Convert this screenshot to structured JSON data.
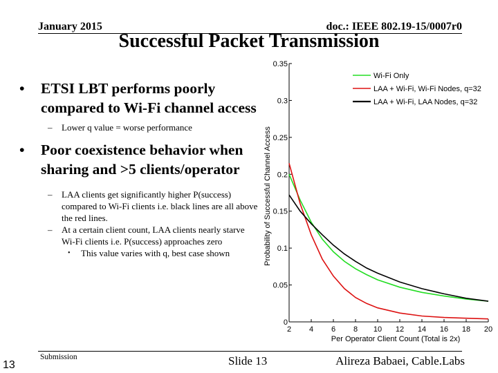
{
  "header": {
    "date": "January 2015",
    "doc": "doc.: IEEE 802.19-15/0007r0",
    "title": "Successful Packet Transmission"
  },
  "bullets": {
    "b1": "ETSI LBT performs poorly compared to Wi-Fi channel access",
    "b1_sub1": "Lower q value = worse performance",
    "b2": "Poor coexistence behavior when sharing and >5 clients/operator",
    "b2_sub1": "LAA clients get significantly higher P(success) compared to Wi-Fi clients i.e. black lines are all above the red lines.",
    "b2_sub2": "At a certain client count, LAA clients nearly starve Wi-Fi clients i.e. P(success) approaches zero",
    "b2_sub2_sub1": "This value varies with q, best case shown"
  },
  "footer": {
    "submission": "Submission",
    "page_number": "13",
    "slide": "Slide 13",
    "author": "Alireza Babaei, Cable.Labs"
  },
  "colors": {
    "wifi": "#22dd22",
    "laa_wifi": "#dd1111",
    "laa_laa": "#000000"
  },
  "chart_data": {
    "type": "line",
    "title": "",
    "xlabel": "Per Operator Client Count (Total is 2x)",
    "ylabel": "Probability of Successful Channel Access",
    "xlim": [
      2,
      20
    ],
    "ylim": [
      0,
      0.35
    ],
    "xticks": [
      2,
      4,
      6,
      8,
      10,
      12,
      14,
      16,
      18,
      20
    ],
    "yticks": [
      0,
      0.05,
      0.1,
      0.15,
      0.2,
      0.25,
      0.3,
      0.35
    ],
    "xtick_labels": [
      "2",
      "4",
      "6",
      "8",
      "10",
      "12",
      "14",
      "16",
      "18",
      "20"
    ],
    "ytick_labels": [
      "0",
      "0.05",
      "0.1",
      "0.15",
      "0.2",
      "0.25",
      "0.3",
      "0.35"
    ],
    "legend_position": "top-right",
    "x": [
      2,
      3,
      4,
      5,
      6,
      7,
      8,
      9,
      10,
      12,
      14,
      16,
      18,
      20
    ],
    "series": [
      {
        "name": "Wi-Fi Only",
        "color": "#22dd22",
        "values": [
          0.2,
          0.165,
          0.135,
          0.112,
          0.095,
          0.082,
          0.072,
          0.064,
          0.057,
          0.047,
          0.04,
          0.035,
          0.031,
          0.028
        ]
      },
      {
        "name": "LAA + Wi-Fi, Wi-Fi Nodes, q=32",
        "color": "#dd1111",
        "values": [
          0.215,
          0.16,
          0.118,
          0.085,
          0.062,
          0.045,
          0.033,
          0.025,
          0.019,
          0.012,
          0.008,
          0.006,
          0.005,
          0.004
        ]
      },
      {
        "name": "LAA + Wi-Fi, LAA Nodes, q=32",
        "color": "#000000",
        "values": [
          0.172,
          0.15,
          0.133,
          0.118,
          0.104,
          0.092,
          0.082,
          0.073,
          0.066,
          0.054,
          0.045,
          0.038,
          0.032,
          0.028
        ]
      }
    ]
  }
}
